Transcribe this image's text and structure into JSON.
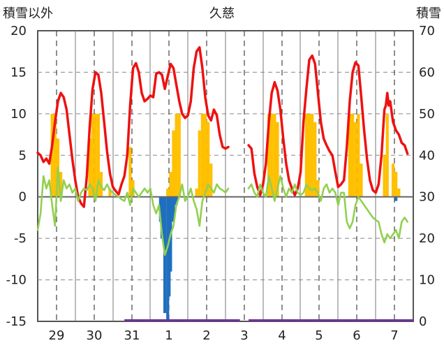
{
  "chart_data": {
    "type": "line",
    "title": "久慈",
    "ylabel_left": "積雪以外",
    "ylabel_right": "積雪",
    "ylim_left": [
      -15,
      20
    ],
    "ylim_right": [
      0,
      70
    ],
    "yticks_left": [
      20,
      15,
      10,
      5,
      0,
      -5,
      -10,
      -15
    ],
    "yticks_right": [
      70,
      60,
      50,
      40,
      30,
      20,
      10,
      0
    ],
    "xticks": [
      "29",
      "30",
      "31",
      "1",
      "2",
      "3",
      "4",
      "5",
      "6",
      "7"
    ],
    "day_labels": [
      "29",
      "30",
      "31",
      "1",
      "2",
      "3",
      "4",
      "5",
      "6",
      "7"
    ],
    "grid": true,
    "colors": {
      "temperature": "#ee1111",
      "wind_like": "#92d050",
      "sunshine": "#ffc000",
      "precip": "#1f6fbf",
      "snow": "#7030a0",
      "grid_dash": "#555555",
      "zero_line": "#666666",
      "frame": "#555555"
    },
    "series": [
      {
        "name": "temperature",
        "axis": "left",
        "points": [
          [
            0.0,
            5.3
          ],
          [
            0.1,
            5.0
          ],
          [
            0.2,
            4.2
          ],
          [
            0.3,
            4.6
          ],
          [
            0.4,
            4.0
          ],
          [
            0.5,
            6.2
          ],
          [
            0.6,
            9.0
          ],
          [
            0.7,
            11.5
          ],
          [
            0.8,
            12.5
          ],
          [
            0.9,
            12.0
          ],
          [
            1.0,
            10.5
          ],
          [
            1.1,
            7.5
          ],
          [
            1.2,
            4.5
          ],
          [
            1.3,
            2.0
          ],
          [
            1.4,
            0.0
          ],
          [
            1.5,
            -0.8
          ],
          [
            1.6,
            -1.2
          ],
          [
            1.7,
            2.5
          ],
          [
            1.8,
            8.5
          ],
          [
            1.9,
            13.0
          ],
          [
            2.0,
            15.0
          ],
          [
            2.1,
            14.7
          ],
          [
            2.2,
            12.5
          ],
          [
            2.3,
            9.0
          ],
          [
            2.4,
            5.5
          ],
          [
            2.5,
            2.8
          ],
          [
            2.6,
            1.2
          ],
          [
            2.7,
            0.7
          ],
          [
            2.8,
            0.3
          ],
          [
            2.9,
            1.5
          ],
          [
            3.0,
            2.5
          ],
          [
            3.1,
            5.0
          ],
          [
            3.2,
            11.0
          ],
          [
            3.3,
            15.5
          ],
          [
            3.4,
            16.1
          ],
          [
            3.5,
            15.0
          ],
          [
            3.6,
            12.5
          ],
          [
            3.7,
            11.5
          ],
          [
            3.8,
            11.8
          ],
          [
            3.9,
            12.2
          ],
          [
            4.0,
            12.0
          ],
          [
            4.1,
            14.8
          ],
          [
            4.2,
            15.0
          ],
          [
            4.3,
            14.7
          ],
          [
            4.4,
            13.0
          ],
          [
            4.5,
            14.5
          ],
          [
            4.6,
            16.0
          ],
          [
            4.7,
            15.5
          ],
          [
            4.8,
            13.5
          ],
          [
            4.9,
            11.5
          ],
          [
            5.0,
            10.0
          ],
          [
            5.1,
            9.5
          ],
          [
            5.2,
            9.8
          ],
          [
            5.3,
            11.5
          ],
          [
            5.4,
            15.5
          ],
          [
            5.5,
            17.5
          ],
          [
            5.6,
            18.0
          ],
          [
            5.7,
            15.5
          ],
          [
            5.8,
            12.0
          ],
          [
            5.9,
            9.8
          ],
          [
            6.0,
            9.2
          ],
          [
            6.1,
            10.5
          ],
          [
            6.2,
            9.8
          ],
          [
            6.3,
            7.5
          ],
          [
            6.4,
            6.0
          ],
          [
            6.5,
            5.8
          ],
          [
            6.6,
            6.0
          ]
        ]
      },
      {
        "name": "temperature",
        "axis": "left",
        "points": [
          [
            7.3,
            6.2
          ],
          [
            7.4,
            5.8
          ],
          [
            7.5,
            2.8
          ],
          [
            7.6,
            1.2
          ],
          [
            7.7,
            0.2
          ],
          [
            7.8,
            1.5
          ],
          [
            7.9,
            4.0
          ],
          [
            8.0,
            9.0
          ],
          [
            8.1,
            12.5
          ],
          [
            8.2,
            13.8
          ],
          [
            8.3,
            12.8
          ],
          [
            8.4,
            10.5
          ],
          [
            8.5,
            7.0
          ],
          [
            8.6,
            4.0
          ],
          [
            8.7,
            2.0
          ],
          [
            8.8,
            1.0
          ],
          [
            8.9,
            0.2
          ],
          [
            9.0,
            1.0
          ],
          [
            9.1,
            3.0
          ],
          [
            9.2,
            9.0
          ],
          [
            9.3,
            13.0
          ],
          [
            9.4,
            16.5
          ],
          [
            9.5,
            17.0
          ],
          [
            9.6,
            16.0
          ],
          [
            9.7,
            12.5
          ],
          [
            9.8,
            9.0
          ],
          [
            9.9,
            7.0
          ],
          [
            10.0,
            6.2
          ],
          [
            10.1,
            5.5
          ],
          [
            10.2,
            5.0
          ],
          [
            10.3,
            3.0
          ],
          [
            10.4,
            1.2
          ],
          [
            10.5,
            1.5
          ],
          [
            10.6,
            2.0
          ],
          [
            10.7,
            6.0
          ],
          [
            10.8,
            11.5
          ],
          [
            10.9,
            15.0
          ],
          [
            11.0,
            16.2
          ],
          [
            11.1,
            15.8
          ],
          [
            11.2,
            12.0
          ],
          [
            11.3,
            8.0
          ],
          [
            11.4,
            4.5
          ],
          [
            11.5,
            2.0
          ],
          [
            11.6,
            0.8
          ],
          [
            11.7,
            0.5
          ],
          [
            11.8,
            1.5
          ],
          [
            11.9,
            5.0
          ],
          [
            12.0,
            10.5
          ],
          [
            12.05,
            11.0
          ],
          [
            12.1,
            12.5
          ],
          [
            12.15,
            11.0
          ],
          [
            12.2,
            11.5
          ],
          [
            12.3,
            9.0
          ],
          [
            12.4,
            8.0
          ],
          [
            12.5,
            7.5
          ],
          [
            12.6,
            6.5
          ],
          [
            12.7,
            6.2
          ],
          [
            12.8,
            5.2
          ]
        ]
      },
      {
        "name": "wind",
        "axis": "left",
        "points": [
          [
            0.0,
            -4.0
          ],
          [
            0.1,
            -2.0
          ],
          [
            0.2,
            2.5
          ],
          [
            0.3,
            1.0
          ],
          [
            0.4,
            2.0
          ],
          [
            0.5,
            -1.0
          ],
          [
            0.6,
            -3.5
          ],
          [
            0.7,
            3.5
          ],
          [
            0.8,
            -0.5
          ],
          [
            0.9,
            2.0
          ],
          [
            1.0,
            1.0
          ],
          [
            1.1,
            1.5
          ],
          [
            1.2,
            0.5
          ],
          [
            1.3,
            1.0
          ],
          [
            1.4,
            -0.5
          ],
          [
            1.5,
            0.5
          ],
          [
            1.6,
            1.0
          ],
          [
            1.7,
            0.8
          ],
          [
            1.8,
            1.5
          ],
          [
            1.9,
            1.0
          ],
          [
            2.0,
            -0.5
          ],
          [
            2.1,
            2.0
          ],
          [
            2.2,
            1.2
          ],
          [
            2.3,
            0.8
          ],
          [
            2.4,
            1.5
          ],
          [
            2.5,
            0.8
          ],
          [
            2.6,
            0.5
          ],
          [
            2.7,
            0.2
          ],
          [
            2.8,
            0.0
          ],
          [
            2.9,
            -0.3
          ],
          [
            3.0,
            -0.5
          ],
          [
            3.1,
            0.5
          ],
          [
            3.2,
            -1.0
          ],
          [
            3.3,
            1.0
          ],
          [
            3.4,
            0.5
          ],
          [
            3.5,
            0.0
          ],
          [
            3.6,
            0.5
          ],
          [
            3.7,
            1.0
          ],
          [
            3.8,
            0.5
          ],
          [
            3.9,
            1.0
          ],
          [
            4.0,
            -1.0
          ],
          [
            4.1,
            -2.0
          ],
          [
            4.2,
            -1.0
          ],
          [
            4.3,
            -4.5
          ],
          [
            4.4,
            -7.0
          ],
          [
            4.5,
            -6.0
          ],
          [
            4.6,
            -4.5
          ],
          [
            4.7,
            -3.5
          ],
          [
            4.8,
            -1.0
          ],
          [
            4.9,
            0.0
          ],
          [
            5.0,
            1.5
          ],
          [
            5.1,
            -0.5
          ],
          [
            5.2,
            0.0
          ],
          [
            5.3,
            1.0
          ],
          [
            5.4,
            -0.5
          ],
          [
            5.5,
            -1.5
          ],
          [
            5.6,
            -3.5
          ],
          [
            5.7,
            -0.5
          ],
          [
            5.8,
            0.5
          ],
          [
            5.9,
            1.5
          ],
          [
            6.0,
            1.0
          ],
          [
            6.1,
            0.5
          ],
          [
            6.2,
            1.5
          ],
          [
            6.3,
            1.0
          ],
          [
            6.4,
            0.8
          ],
          [
            6.5,
            0.5
          ],
          [
            6.6,
            1.0
          ]
        ]
      },
      {
        "name": "wind",
        "axis": "left",
        "points": [
          [
            7.3,
            1.0
          ],
          [
            7.4,
            1.5
          ],
          [
            7.5,
            0.5
          ],
          [
            7.6,
            0.0
          ],
          [
            7.7,
            1.5
          ],
          [
            7.8,
            0.5
          ],
          [
            7.9,
            0.0
          ],
          [
            8.0,
            2.5
          ],
          [
            8.1,
            1.0
          ],
          [
            8.2,
            -0.5
          ],
          [
            8.3,
            1.0
          ],
          [
            8.4,
            2.5
          ],
          [
            8.5,
            1.0
          ],
          [
            8.6,
            0.0
          ],
          [
            8.7,
            1.0
          ],
          [
            8.8,
            0.5
          ],
          [
            8.9,
            1.5
          ],
          [
            9.0,
            0.5
          ],
          [
            9.1,
            0.2
          ],
          [
            9.2,
            0.5
          ],
          [
            9.3,
            1.5
          ],
          [
            9.4,
            1.0
          ],
          [
            9.5,
            0.8
          ],
          [
            9.6,
            1.0
          ],
          [
            9.7,
            0.5
          ],
          [
            9.8,
            -0.5
          ],
          [
            9.9,
            1.0
          ],
          [
            10.0,
            1.5
          ],
          [
            10.1,
            0.5
          ],
          [
            10.2,
            1.0
          ],
          [
            10.3,
            0.5
          ],
          [
            10.4,
            -1.0
          ],
          [
            10.5,
            0.5
          ],
          [
            10.6,
            0.5
          ],
          [
            10.7,
            -3.0
          ],
          [
            10.8,
            -3.8
          ],
          [
            10.9,
            -3.0
          ],
          [
            11.0,
            -1.0
          ],
          [
            11.1,
            0.0
          ],
          [
            11.2,
            -0.5
          ],
          [
            11.3,
            -1.0
          ],
          [
            11.4,
            -1.5
          ],
          [
            11.5,
            -2.0
          ],
          [
            11.6,
            -2.5
          ],
          [
            11.7,
            -2.8
          ],
          [
            11.8,
            -3.0
          ],
          [
            11.9,
            -4.5
          ],
          [
            12.0,
            -5.5
          ],
          [
            12.1,
            -4.5
          ],
          [
            12.2,
            -5.0
          ],
          [
            12.3,
            -4.5
          ],
          [
            12.4,
            -4.0
          ],
          [
            12.5,
            -5.0
          ],
          [
            12.6,
            -3.0
          ],
          [
            12.7,
            -2.5
          ],
          [
            12.8,
            -3.0
          ]
        ]
      }
    ],
    "sunshine_bars": [
      [
        0.5,
        10
      ],
      [
        0.6,
        10
      ],
      [
        0.7,
        7
      ],
      [
        0.8,
        3
      ],
      [
        1.8,
        7
      ],
      [
        1.9,
        10
      ],
      [
        2.0,
        10
      ],
      [
        2.1,
        10
      ],
      [
        2.2,
        3
      ],
      [
        2.5,
        1
      ],
      [
        3.2,
        6
      ],
      [
        3.3,
        2
      ],
      [
        4.5,
        1
      ],
      [
        4.6,
        3
      ],
      [
        4.7,
        8
      ],
      [
        4.8,
        10
      ],
      [
        4.9,
        10
      ],
      [
        5.5,
        1
      ],
      [
        5.6,
        8
      ],
      [
        5.7,
        10
      ],
      [
        5.8,
        10
      ],
      [
        5.9,
        9
      ],
      [
        6.0,
        4
      ],
      [
        8.0,
        10
      ],
      [
        8.1,
        10
      ],
      [
        8.2,
        10
      ],
      [
        8.3,
        9
      ],
      [
        9.3,
        10
      ],
      [
        9.4,
        10
      ],
      [
        9.5,
        10
      ],
      [
        9.6,
        9
      ],
      [
        9.7,
        2
      ],
      [
        10.8,
        10
      ],
      [
        10.9,
        10
      ],
      [
        11.0,
        9
      ],
      [
        11.1,
        10
      ],
      [
        11.2,
        4
      ],
      [
        12.0,
        5
      ],
      [
        12.1,
        10
      ],
      [
        12.3,
        4
      ],
      [
        12.4,
        3
      ],
      [
        12.5,
        1
      ]
    ],
    "precip_bars": [
      [
        4.25,
        -3
      ],
      [
        4.3,
        -5
      ],
      [
        4.4,
        -14
      ],
      [
        4.5,
        -15
      ],
      [
        4.55,
        -12
      ],
      [
        4.6,
        -9
      ],
      [
        4.7,
        -3
      ],
      [
        4.8,
        -1
      ],
      [
        12.4,
        -0.5
      ]
    ],
    "snow_segments": [
      [
        3.0,
        7.0
      ],
      [
        7.3,
        13.0
      ]
    ]
  }
}
